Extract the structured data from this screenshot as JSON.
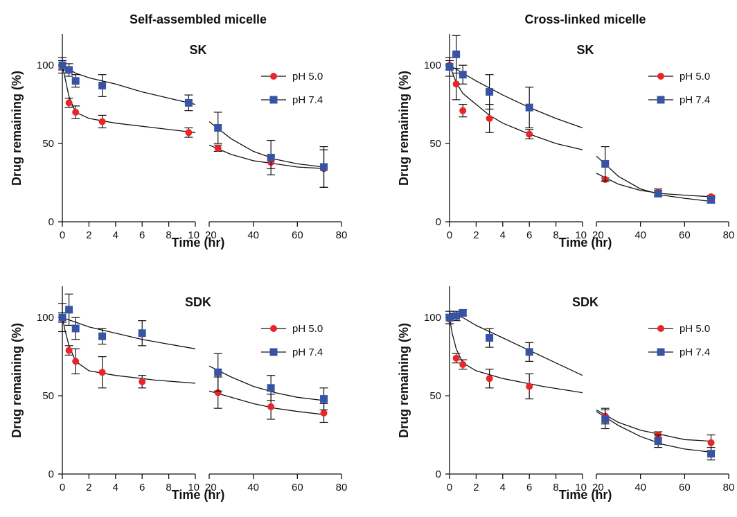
{
  "column_titles": [
    "Self-assembled micelle",
    "Cross-linked micelle"
  ],
  "colors": {
    "pH 5.0": "#e8262a",
    "pH 7.4": "#3853a4",
    "axis": "#111111",
    "fit": "#111111"
  },
  "chart_data": [
    {
      "type": "scatter",
      "title": "SK",
      "xlabel": "Time (hr)",
      "ylabel": "Drug remaining (%)",
      "ylim": [
        0,
        120
      ],
      "y_ticks": [
        0,
        50,
        100
      ],
      "x_segments": [
        {
          "xlim": [
            0,
            10
          ],
          "ticks": [
            0,
            2,
            4,
            6,
            8,
            10
          ]
        },
        {
          "xlim": [
            20,
            80
          ],
          "ticks": [
            20,
            40,
            60,
            80
          ]
        }
      ],
      "legend": "right",
      "series": [
        {
          "name": "pH 5.0",
          "marker": "circle",
          "x": [
            0,
            0.5,
            1,
            3,
            9.5,
            24,
            48,
            72
          ],
          "y": [
            100,
            76,
            70,
            64,
            57,
            47,
            38,
            34
          ],
          "err": [
            3,
            3,
            4,
            4,
            3,
            2,
            4,
            12
          ],
          "fit": [
            [
              0,
              100
            ],
            [
              0.2,
              92
            ],
            [
              0.5,
              80
            ],
            [
              1,
              70
            ],
            [
              2,
              66
            ],
            [
              4,
              63
            ],
            [
              7,
              60
            ],
            [
              10,
              57
            ],
            [
              null,
              null
            ],
            [
              20,
              49
            ],
            [
              30,
              43
            ],
            [
              40,
              39
            ],
            [
              50,
              37
            ],
            [
              60,
              35
            ],
            [
              72,
              34
            ]
          ]
        },
        {
          "name": "pH 7.4",
          "marker": "square",
          "x": [
            0,
            0.5,
            1,
            3,
            9.5,
            24,
            48,
            72
          ],
          "y": [
            100,
            97,
            90,
            87,
            76,
            60,
            41,
            35
          ],
          "err": [
            5,
            4,
            4,
            7,
            5,
            10,
            11,
            13
          ],
          "fit": [
            [
              0,
              100
            ],
            [
              1,
              95
            ],
            [
              2,
              92
            ],
            [
              4,
              88
            ],
            [
              6,
              83
            ],
            [
              8,
              79
            ],
            [
              10,
              75
            ],
            [
              null,
              null
            ],
            [
              20,
              64
            ],
            [
              30,
              53
            ],
            [
              40,
              45
            ],
            [
              50,
              40
            ],
            [
              60,
              37
            ],
            [
              72,
              35
            ]
          ]
        }
      ]
    },
    {
      "type": "scatter",
      "title": "SK",
      "xlabel": "Time (hr)",
      "ylabel": "Drug remaining (%)",
      "ylim": [
        0,
        120
      ],
      "y_ticks": [
        0,
        50,
        100
      ],
      "x_segments": [
        {
          "xlim": [
            0,
            10
          ],
          "ticks": [
            0,
            2,
            4,
            6,
            8,
            10
          ]
        },
        {
          "xlim": [
            20,
            80
          ],
          "ticks": [
            20,
            40,
            60,
            80
          ]
        }
      ],
      "legend": "right",
      "series": [
        {
          "name": "pH 5.0",
          "marker": "circle",
          "x": [
            0,
            0.5,
            1,
            3,
            6,
            24,
            48,
            72
          ],
          "y": [
            100,
            88,
            71,
            66,
            56,
            27,
            19,
            16
          ],
          "err": [
            3,
            10,
            4,
            9,
            3,
            1,
            2,
            1
          ],
          "fit": [
            [
              0,
              100
            ],
            [
              0.5,
              89
            ],
            [
              1,
              82
            ],
            [
              2,
              75
            ],
            [
              3,
              68
            ],
            [
              4,
              63
            ],
            [
              6,
              56
            ],
            [
              8,
              50
            ],
            [
              10,
              46
            ],
            [
              null,
              null
            ],
            [
              20,
              31
            ],
            [
              30,
              24
            ],
            [
              40,
              20
            ],
            [
              50,
              18
            ],
            [
              60,
              17
            ],
            [
              72,
              16
            ]
          ]
        },
        {
          "name": "pH 7.4",
          "marker": "square",
          "x": [
            0,
            0.5,
            1,
            3,
            6,
            24,
            48,
            72
          ],
          "y": [
            99,
            107,
            94,
            83,
            73,
            37,
            18,
            14
          ],
          "err": [
            6,
            12,
            6,
            11,
            13,
            11,
            2,
            2
          ],
          "fit": [
            [
              0,
              100
            ],
            [
              1,
              95
            ],
            [
              2,
              90
            ],
            [
              4,
              81
            ],
            [
              6,
              73
            ],
            [
              8,
              66
            ],
            [
              10,
              60
            ],
            [
              null,
              null
            ],
            [
              20,
              42
            ],
            [
              30,
              29
            ],
            [
              40,
              21
            ],
            [
              50,
              17
            ],
            [
              60,
              15
            ],
            [
              72,
              13
            ]
          ]
        }
      ]
    },
    {
      "type": "scatter",
      "title": "SDK",
      "xlabel": "Time (hr)",
      "ylabel": "Drug remaining (%)",
      "ylim": [
        0,
        120
      ],
      "y_ticks": [
        0,
        50,
        100
      ],
      "x_segments": [
        {
          "xlim": [
            0,
            10
          ],
          "ticks": [
            0,
            2,
            4,
            6,
            8,
            10
          ]
        },
        {
          "xlim": [
            20,
            80
          ],
          "ticks": [
            20,
            40,
            60,
            80
          ]
        }
      ],
      "legend": "right",
      "series": [
        {
          "name": "pH 5.0",
          "marker": "circle",
          "x": [
            0,
            0.5,
            1,
            3,
            6,
            24,
            48,
            72
          ],
          "y": [
            100,
            79,
            72,
            65,
            59,
            52,
            43,
            39
          ],
          "err": [
            3,
            3,
            8,
            10,
            4,
            10,
            8,
            6
          ],
          "fit": [
            [
              0,
              100
            ],
            [
              0.2,
              92
            ],
            [
              0.5,
              82
            ],
            [
              1,
              72
            ],
            [
              2,
              66
            ],
            [
              4,
              63
            ],
            [
              7,
              60
            ],
            [
              10,
              58
            ],
            [
              null,
              null
            ],
            [
              20,
              53
            ],
            [
              30,
              49
            ],
            [
              40,
              45
            ],
            [
              50,
              42
            ],
            [
              60,
              40
            ],
            [
              72,
              38
            ]
          ]
        },
        {
          "name": "pH 7.4",
          "marker": "square",
          "x": [
            0,
            0.5,
            1,
            3,
            6,
            24,
            48,
            72
          ],
          "y": [
            100,
            105,
            93,
            88,
            90,
            65,
            55,
            48
          ],
          "err": [
            9,
            10,
            7,
            5,
            8,
            12,
            8,
            7
          ],
          "fit": [
            [
              0,
              100
            ],
            [
              1,
              97
            ],
            [
              2,
              94
            ],
            [
              4,
              90
            ],
            [
              6,
              86
            ],
            [
              8,
              83
            ],
            [
              10,
              80
            ],
            [
              null,
              null
            ],
            [
              20,
              69
            ],
            [
              30,
              62
            ],
            [
              40,
              56
            ],
            [
              50,
              52
            ],
            [
              60,
              49
            ],
            [
              72,
              47
            ]
          ]
        }
      ]
    },
    {
      "type": "scatter",
      "title": "SDK",
      "xlabel": "Time (hr)",
      "ylabel": "Drug remaining (%)",
      "ylim": [
        0,
        120
      ],
      "y_ticks": [
        0,
        50,
        100
      ],
      "x_segments": [
        {
          "xlim": [
            0,
            10
          ],
          "ticks": [
            0,
            2,
            4,
            6,
            8,
            10
          ]
        },
        {
          "xlim": [
            20,
            80
          ],
          "ticks": [
            20,
            40,
            60,
            80
          ]
        }
      ],
      "legend": "right",
      "series": [
        {
          "name": "pH 5.0",
          "marker": "circle",
          "x": [
            0,
            0.5,
            1,
            3,
            6,
            24,
            48,
            72
          ],
          "y": [
            99,
            74,
            70,
            61,
            56,
            37,
            25,
            20
          ],
          "err": [
            3,
            3,
            3,
            6,
            8,
            5,
            2,
            5
          ],
          "fit": [
            [
              0,
              100
            ],
            [
              0.2,
              90
            ],
            [
              0.5,
              80
            ],
            [
              1,
              71
            ],
            [
              2,
              66
            ],
            [
              4,
              61
            ],
            [
              7,
              56
            ],
            [
              10,
              52
            ],
            [
              null,
              null
            ],
            [
              20,
              41
            ],
            [
              30,
              33
            ],
            [
              40,
              28
            ],
            [
              50,
              25
            ],
            [
              60,
              22
            ],
            [
              72,
              21
            ]
          ]
        },
        {
          "name": "pH 7.4",
          "marker": "square",
          "x": [
            0,
            0.5,
            1,
            3,
            6,
            24,
            48,
            72
          ],
          "y": [
            100,
            101,
            103,
            87,
            78,
            35,
            21,
            13
          ],
          "err": [
            4,
            3,
            2,
            6,
            6,
            6,
            4,
            4
          ],
          "fit": [
            [
              0,
              103
            ],
            [
              1,
              100
            ],
            [
              2,
              95
            ],
            [
              4,
              87
            ],
            [
              6,
              79
            ],
            [
              8,
              71
            ],
            [
              10,
              63
            ],
            [
              null,
              null
            ],
            [
              20,
              40
            ],
            [
              30,
              31
            ],
            [
              40,
              24
            ],
            [
              50,
              19
            ],
            [
              60,
              16
            ],
            [
              72,
              14
            ]
          ]
        }
      ]
    }
  ]
}
